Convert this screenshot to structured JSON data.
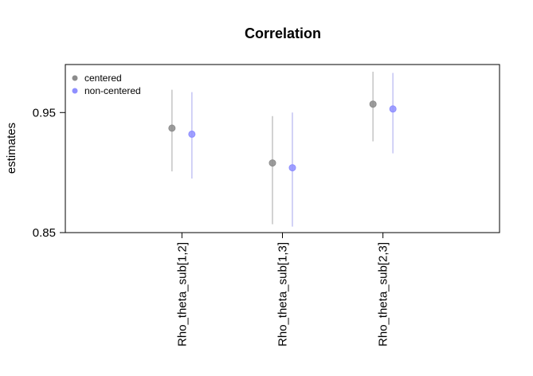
{
  "chart_data": {
    "type": "interval",
    "title": "Correlation",
    "y_label": "estimates",
    "categories": [
      "Rho_theta_sub[1,2]",
      "Rho_theta_sub[1,3]",
      "Rho_theta_sub[2,3]"
    ],
    "series": [
      {
        "name": "centered",
        "color": "#8c8c8c",
        "interval_color": "#c4c4c4",
        "values": [
          0.937,
          0.908,
          0.957
        ],
        "lower": [
          0.901,
          0.857,
          0.926
        ],
        "upper": [
          0.969,
          0.947,
          0.984
        ]
      },
      {
        "name": "non-centered",
        "color": "#8f8fff",
        "interval_color": "#c4c4f4",
        "values": [
          0.932,
          0.904,
          0.953
        ],
        "lower": [
          0.895,
          0.855,
          0.916
        ],
        "upper": [
          0.967,
          0.95,
          0.983
        ]
      }
    ],
    "ylim": [
      0.85,
      0.99
    ],
    "yticks": [
      0.85,
      0.95
    ],
    "legend": "topleft"
  }
}
